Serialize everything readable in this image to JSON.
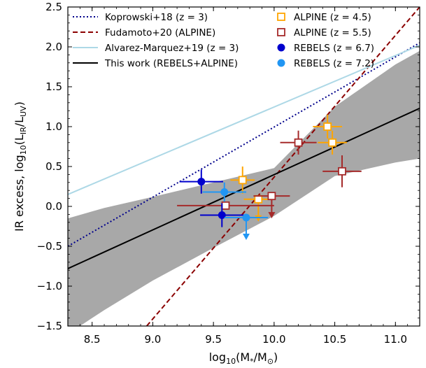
{
  "chart_data": {
    "type": "scatter",
    "xlabel_base": "log",
    "xlabel_sub": "10",
    "xlabel_rest": "(M",
    "xlabel_star_sub": "*",
    "xlabel_slash": "/M",
    "xlabel_sun_sub": "⊙",
    "xlabel_close": ")",
    "ylabel_main": "IR excess, log",
    "ylabel_sub": "10",
    "ylabel_mid": "(L",
    "ylabel_ir_sub": "IR",
    "ylabel_slash": "/L",
    "ylabel_uv_sub": "UV",
    "ylabel_close": ")",
    "xlim": [
      8.3,
      11.2
    ],
    "ylim": [
      -1.5,
      2.5
    ],
    "x_ticks": [
      {
        "value": 8.5,
        "label": "8.5"
      },
      {
        "value": 9.0,
        "label": "9.0"
      },
      {
        "value": 9.5,
        "label": "9.5"
      },
      {
        "value": 10.0,
        "label": "10.0"
      },
      {
        "value": 10.5,
        "label": "10.5"
      },
      {
        "value": 11.0,
        "label": "11.0"
      }
    ],
    "x_minor_step": 0.1,
    "y_ticks": [
      {
        "value": -1.5,
        "label": "−1.5"
      },
      {
        "value": -1.0,
        "label": "−1.0"
      },
      {
        "value": -0.5,
        "label": "−0.5"
      },
      {
        "value": 0.0,
        "label": "0.0"
      },
      {
        "value": 0.5,
        "label": "0.5"
      },
      {
        "value": 1.0,
        "label": "1.0"
      },
      {
        "value": 1.5,
        "label": "1.5"
      },
      {
        "value": 2.0,
        "label": "2.0"
      },
      {
        "value": 2.5,
        "label": "2.5"
      }
    ],
    "y_minor_step": 0.1,
    "shaded_band": {
      "color": "#a8a8a8",
      "upper": [
        [
          8.3,
          -0.15
        ],
        [
          8.6,
          -0.02
        ],
        [
          9.0,
          0.12
        ],
        [
          9.5,
          0.3
        ],
        [
          10.0,
          0.48
        ],
        [
          10.5,
          1.25
        ],
        [
          11.0,
          1.78
        ],
        [
          11.2,
          1.95
        ]
      ],
      "lower": [
        [
          8.3,
          -1.6
        ],
        [
          8.6,
          -1.3
        ],
        [
          9.0,
          -0.93
        ],
        [
          9.5,
          -0.52
        ],
        [
          10.0,
          -0.12
        ],
        [
          10.5,
          0.38
        ],
        [
          11.0,
          0.55
        ],
        [
          11.2,
          0.6
        ]
      ]
    },
    "lines": [
      {
        "name": "Koprowski+18 (z = 3)",
        "color": "#00008b",
        "dash": "2,3",
        "width": 2,
        "x": [
          8.3,
          11.2
        ],
        "y": [
          -0.5,
          2.05
        ]
      },
      {
        "name": "Fudamoto+20 (ALPINE)",
        "color": "#8b0000",
        "dash": "7,4",
        "width": 2,
        "x": [
          8.95,
          11.2
        ],
        "y": [
          -1.5,
          2.5
        ]
      },
      {
        "name": "Alvarez-Marquez+19 (z = 3)",
        "color": "#add8e6",
        "dash": "",
        "width": 2,
        "x": [
          8.3,
          11.2
        ],
        "y": [
          0.15,
          2.02
        ]
      },
      {
        "name": "This work (REBELS+ALPINE)",
        "color": "#000000",
        "dash": "",
        "width": 2,
        "x": [
          8.3,
          11.2
        ],
        "y": [
          -0.78,
          1.23
        ]
      }
    ],
    "points": [
      {
        "group": "ALPINE (z = 4.5)",
        "x": 9.74,
        "y": 0.33,
        "xerr": 0.1,
        "yerr": 0.17,
        "marker": "square-open",
        "color": "#ffa500",
        "upper_limit": false
      },
      {
        "group": "ALPINE (z = 4.5)",
        "x": 9.87,
        "y": 0.09,
        "xerr": 0.12,
        "yerr": 0.0,
        "marker": "square-open",
        "color": "#ffa500",
        "upper_limit": true
      },
      {
        "group": "ALPINE (z = 4.5)",
        "x": 10.44,
        "y": 1.0,
        "xerr": 0.12,
        "yerr": 0.15,
        "marker": "square-open",
        "color": "#ffa500",
        "upper_limit": false
      },
      {
        "group": "ALPINE (z = 4.5)",
        "x": 10.48,
        "y": 0.8,
        "xerr": 0.12,
        "yerr": 0.15,
        "marker": "square-open",
        "color": "#ffa500",
        "upper_limit": false
      },
      {
        "group": "ALPINE (z = 5.5)",
        "x": 9.6,
        "y": 0.01,
        "xerr": 0.4,
        "yerr": 0.0,
        "marker": "square-open",
        "color": "#a52a2a",
        "upper_limit": false
      },
      {
        "group": "ALPINE (z = 5.5)",
        "x": 9.98,
        "y": 0.13,
        "xerr": 0.15,
        "yerr": 0.0,
        "marker": "square-open",
        "color": "#a52a2a",
        "upper_limit": true
      },
      {
        "group": "ALPINE (z = 5.5)",
        "x": 10.2,
        "y": 0.8,
        "xerr": 0.15,
        "yerr": 0.15,
        "marker": "square-open",
        "color": "#a52a2a",
        "upper_limit": false
      },
      {
        "group": "ALPINE (z = 5.5)",
        "x": 10.56,
        "y": 0.44,
        "xerr": 0.16,
        "yerr": 0.2,
        "marker": "square-open",
        "color": "#a52a2a",
        "upper_limit": false
      },
      {
        "group": "REBELS (z = 6.7)",
        "x": 9.4,
        "y": 0.31,
        "xerr": 0.18,
        "yerr": 0.15,
        "marker": "circle",
        "color": "#0000cd",
        "upper_limit": false
      },
      {
        "group": "REBELS (z = 6.7)",
        "x": 9.57,
        "y": -0.11,
        "xerr": 0.18,
        "yerr": 0.15,
        "marker": "circle",
        "color": "#0000cd",
        "upper_limit": false
      },
      {
        "group": "REBELS (z = 7.2)",
        "x": 9.59,
        "y": 0.18,
        "xerr": 0.18,
        "yerr": 0.12,
        "marker": "circle",
        "color": "#2196f3",
        "upper_limit": false
      },
      {
        "group": "REBELS (z = 7.2)",
        "x": 9.77,
        "y": -0.14,
        "xerr": 0.18,
        "yerr": 0.0,
        "marker": "circle",
        "color": "#2196f3",
        "upper_limit": true
      }
    ],
    "legend": {
      "placement": "top",
      "left_column": [
        {
          "label": "Koprowski+18 (z = 3)",
          "kind": "line",
          "color": "#00008b",
          "dash": "2,3"
        },
        {
          "label": "Fudamoto+20 (ALPINE)",
          "kind": "line",
          "color": "#8b0000",
          "dash": "7,4"
        },
        {
          "label": "Alvarez-Marquez+19 (z = 3)",
          "kind": "line",
          "color": "#add8e6",
          "dash": ""
        },
        {
          "label": "This work (REBELS+ALPINE)",
          "kind": "line",
          "color": "#000000",
          "dash": ""
        }
      ],
      "right_column": [
        {
          "label": "ALPINE (z = 4.5)",
          "kind": "square-open",
          "color": "#ffa500"
        },
        {
          "label": "ALPINE (z = 5.5)",
          "kind": "square-open",
          "color": "#a52a2a"
        },
        {
          "label": "REBELS (z = 6.7)",
          "kind": "circle",
          "color": "#0000cd"
        },
        {
          "label": "REBELS (z = 7.2)",
          "kind": "circle",
          "color": "#2196f3"
        }
      ]
    }
  }
}
